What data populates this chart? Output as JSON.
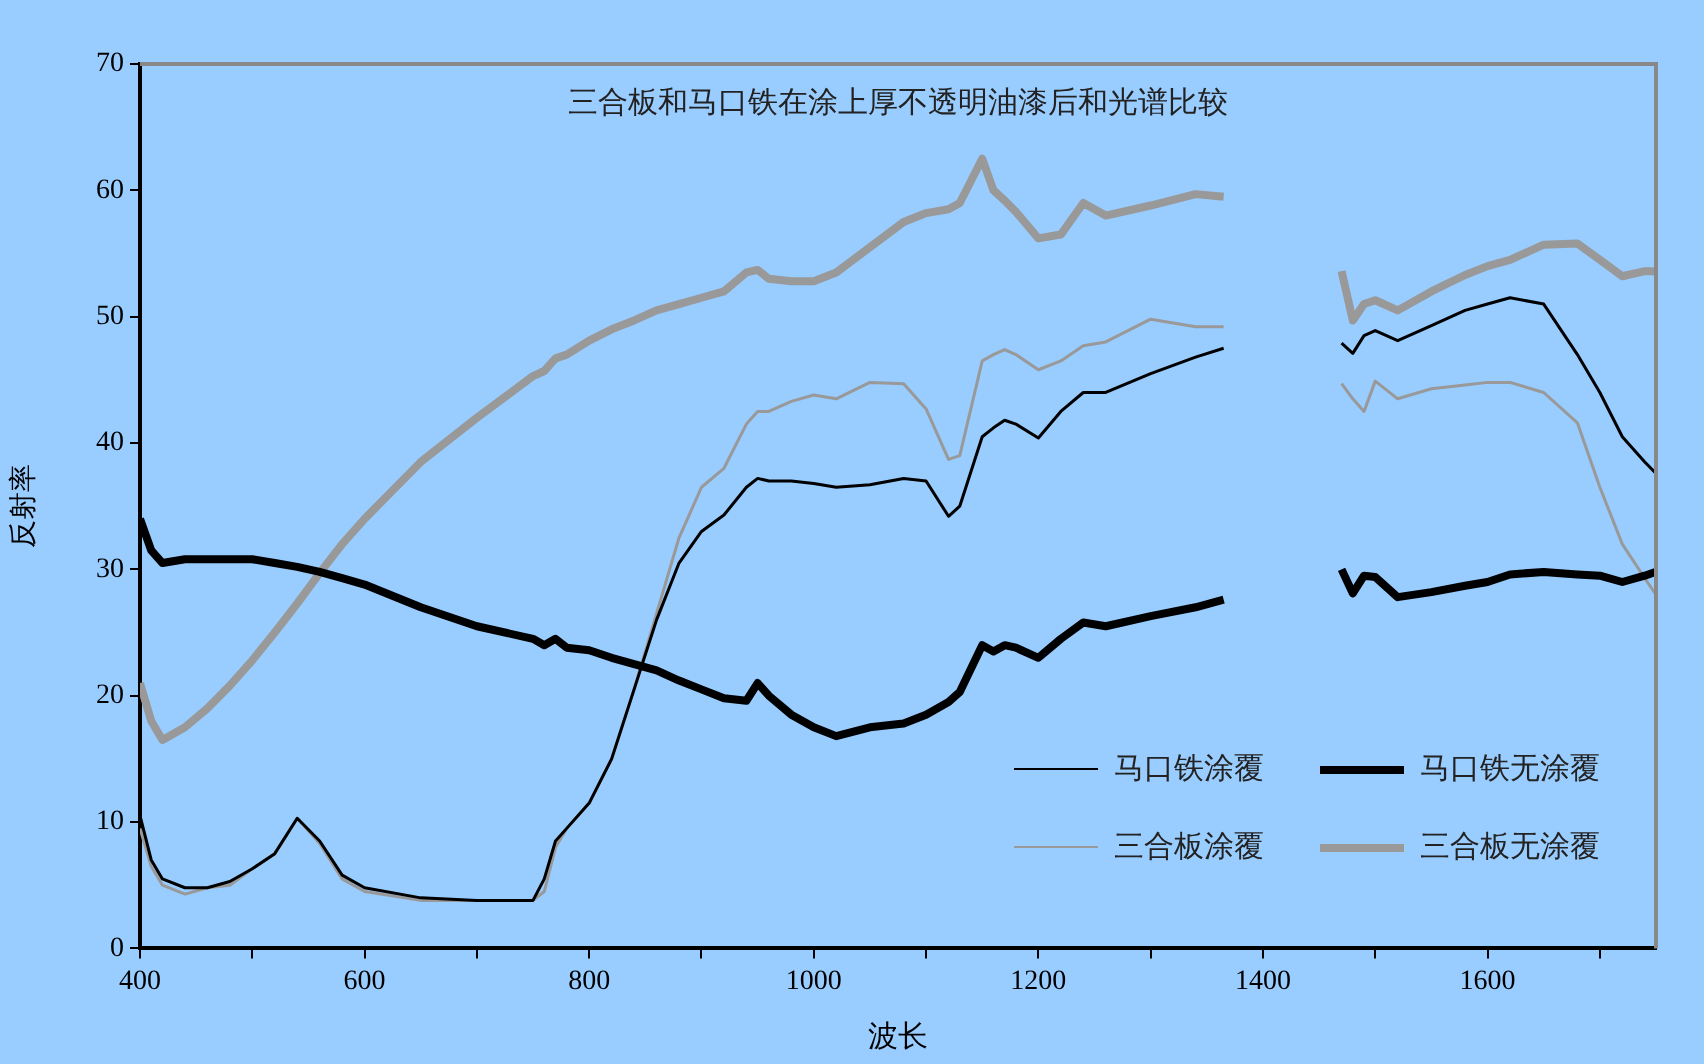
{
  "chart_data": {
    "type": "line",
    "title": "三合板和马口铁在涂上厚不透明油漆后和光谱比较",
    "xlabel": "波长",
    "ylabel": "反射率",
    "x": [
      400,
      410,
      420,
      440,
      460,
      480,
      500,
      520,
      540,
      560,
      580,
      600,
      650,
      700,
      750,
      760,
      770,
      780,
      800,
      820,
      840,
      860,
      880,
      900,
      920,
      940,
      950,
      960,
      980,
      1000,
      1020,
      1050,
      1080,
      1100,
      1120,
      1130,
      1150,
      1160,
      1170,
      1180,
      1200,
      1220,
      1240,
      1260,
      1300,
      1340,
      1365,
      1400,
      1470,
      1480,
      1490,
      1500,
      1520,
      1550,
      1580,
      1600,
      1620,
      1650,
      1680,
      1700,
      1720,
      1740,
      1750
    ],
    "series": [
      {
        "name": "马口铁涂覆",
        "color": "#000000",
        "values": [
          10.5,
          7,
          5.5,
          4.8,
          4.8,
          5.3,
          6.3,
          7.5,
          10.3,
          8.5,
          5.8,
          4.8,
          4,
          3.8,
          3.8,
          5.5,
          8.5,
          9.5,
          11.5,
          15,
          20.5,
          26,
          30.5,
          33,
          34.3,
          36.5,
          37.2,
          37,
          37,
          36.8,
          36.5,
          36.7,
          37.2,
          37,
          34.2,
          35,
          40.5,
          41.2,
          41.8,
          41.5,
          40.4,
          42.5,
          44,
          44,
          45.5,
          46.8,
          47.5,
          null,
          47.9,
          47.1,
          48.5,
          48.9,
          48.1,
          49.3,
          50.5,
          51,
          51.5,
          51,
          47,
          44,
          40.5,
          38.5,
          37.6
        ]
      },
      {
        "name": "马口铁无涂覆",
        "color": "#000000",
        "values": [
          34,
          31.5,
          30.5,
          30.8,
          30.8,
          30.8,
          30.8,
          30.5,
          30.2,
          29.8,
          29.3,
          28.8,
          27,
          25.5,
          24.5,
          24,
          24.5,
          23.8,
          23.6,
          23,
          22.5,
          22,
          21.2,
          20.5,
          19.8,
          19.6,
          21,
          20,
          18.5,
          17.5,
          16.8,
          17.5,
          17.8,
          18.5,
          19.5,
          20.3,
          24,
          23.5,
          24,
          23.8,
          23,
          24.5,
          25.8,
          25.5,
          26.3,
          27,
          27.6,
          null,
          30,
          28.1,
          29.5,
          29.4,
          27.8,
          28.2,
          28.7,
          29,
          29.6,
          29.8,
          29.6,
          29.5,
          29,
          29.5,
          29.8
        ]
      },
      {
        "name": "三合板涂覆",
        "color": "#999999",
        "values": [
          9.5,
          6.5,
          5,
          4.3,
          4.8,
          5,
          6.3,
          7.5,
          10.3,
          8.3,
          5.5,
          4.5,
          3.8,
          3.8,
          3.8,
          4.5,
          8,
          9.5,
          11.5,
          15,
          20.5,
          26.5,
          32.5,
          36.5,
          38,
          41.5,
          42.5,
          42.5,
          43.3,
          43.8,
          43.5,
          44.8,
          44.7,
          42.7,
          38.7,
          39,
          46.5,
          47,
          47.4,
          47,
          45.8,
          46.5,
          47.7,
          48,
          49.8,
          49.2,
          49.2,
          null,
          44.7,
          43.5,
          42.5,
          44.9,
          43.5,
          44.3,
          44.6,
          44.8,
          44.8,
          44,
          41.6,
          36.5,
          32,
          29.3,
          28
        ]
      },
      {
        "name": "三合板无涂覆",
        "color": "#999999",
        "values": [
          21,
          18,
          16.5,
          17.5,
          19,
          20.8,
          22.8,
          25,
          27.3,
          29.7,
          32,
          34,
          38.5,
          42,
          45.3,
          45.7,
          46.7,
          47,
          48.1,
          49,
          49.7,
          50.5,
          51,
          51.5,
          52,
          53.5,
          53.7,
          53,
          52.8,
          52.8,
          53.5,
          55.5,
          57.5,
          58.2,
          58.5,
          59,
          62.5,
          60,
          59.2,
          58.3,
          56.2,
          56.5,
          59,
          58,
          58.8,
          59.7,
          59.5,
          null,
          53.6,
          49.7,
          51,
          51.3,
          50.5,
          52,
          53.3,
          54,
          54.5,
          55.7,
          55.8,
          54.5,
          53.2,
          53.6,
          53.6
        ]
      }
    ],
    "xlim": [
      400,
      1750
    ],
    "xticks": [
      400,
      {
        "value": 500,
        "label": null
      },
      600,
      {
        "value": 700,
        "label": null
      },
      800,
      {
        "value": 900,
        "label": null
      },
      1000,
      {
        "value": 1100,
        "label": null
      },
      1200,
      {
        "value": 1300,
        "label": null
      },
      1400,
      {
        "value": 1500,
        "label": null
      },
      1600,
      {
        "value": 1700,
        "label": null
      }
    ],
    "ylim": [
      0,
      70
    ],
    "yticks": [
      0,
      10,
      20,
      30,
      40,
      50,
      60,
      70
    ],
    "legend": "bottom right",
    "marker": "none",
    "line_style": "solid"
  }
}
